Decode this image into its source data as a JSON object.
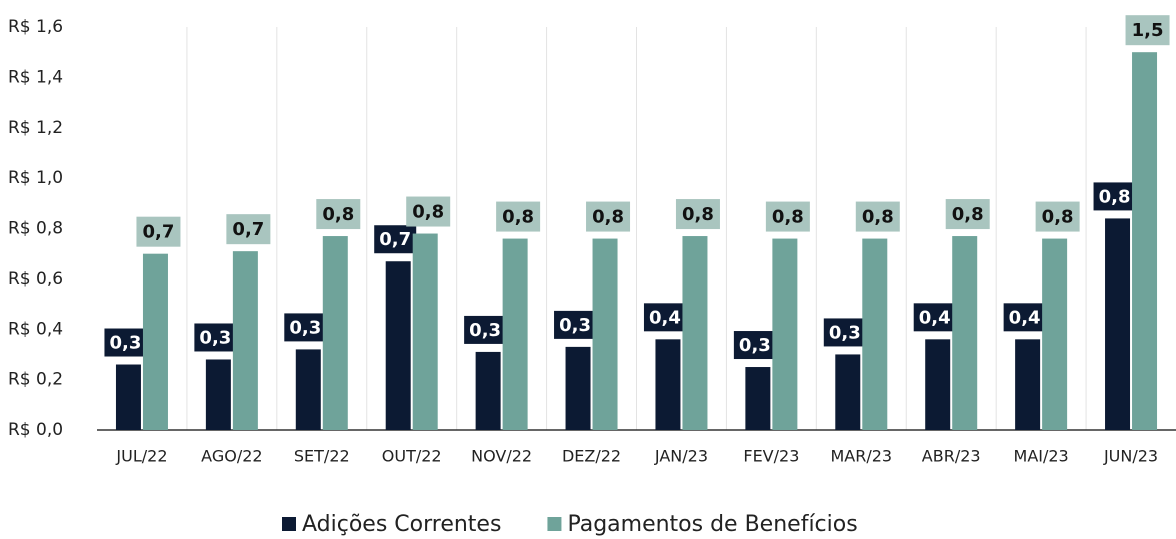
{
  "chart_data": {
    "type": "bar",
    "categories": [
      "JUL/22",
      "AGO/22",
      "SET/22",
      "OUT/22",
      "NOV/22",
      "DEZ/22",
      "JAN/23",
      "FEV/23",
      "MAR/23",
      "ABR/23",
      "MAI/23",
      "JUN/23"
    ],
    "series": [
      {
        "name": "Adições Correntes",
        "color": "#0c1a33",
        "values": [
          0.26,
          0.28,
          0.32,
          0.67,
          0.31,
          0.33,
          0.36,
          0.25,
          0.3,
          0.36,
          0.36,
          0.84
        ],
        "value_labels": [
          "0,3",
          "0,3",
          "0,3",
          "0,7",
          "0,3",
          "0,3",
          "0,4",
          "0,3",
          "0,3",
          "0,4",
          "0,4",
          "0,8"
        ]
      },
      {
        "name": "Pagamentos de Benefícios",
        "color": "#6fa39a",
        "values": [
          0.7,
          0.71,
          0.77,
          0.78,
          0.76,
          0.76,
          0.77,
          0.76,
          0.76,
          0.77,
          0.76,
          1.5
        ],
        "value_labels": [
          "0,7",
          "0,7",
          "0,8",
          "0,8",
          "0,8",
          "0,8",
          "0,8",
          "0,8",
          "0,8",
          "0,8",
          "0,8",
          "1,5"
        ]
      }
    ],
    "ylim": [
      0,
      1.6
    ],
    "yticks": [
      {
        "value": 0,
        "label": "R$ 0,0"
      },
      {
        "value": 0.2,
        "label": "R$ 0,2"
      },
      {
        "value": 0.4,
        "label": "R$ 0,4"
      },
      {
        "value": 0.6,
        "label": "R$ 0,6"
      },
      {
        "value": 0.8,
        "label": "R$ 0,8"
      },
      {
        "value": 1.0,
        "label": "R$ 1,0"
      },
      {
        "value": 1.2,
        "label": "R$ 1,2"
      },
      {
        "value": 1.4,
        "label": "R$ 1,4"
      },
      {
        "value": 1.6,
        "label": "R$ 1,6"
      }
    ],
    "legend": "bottom"
  }
}
